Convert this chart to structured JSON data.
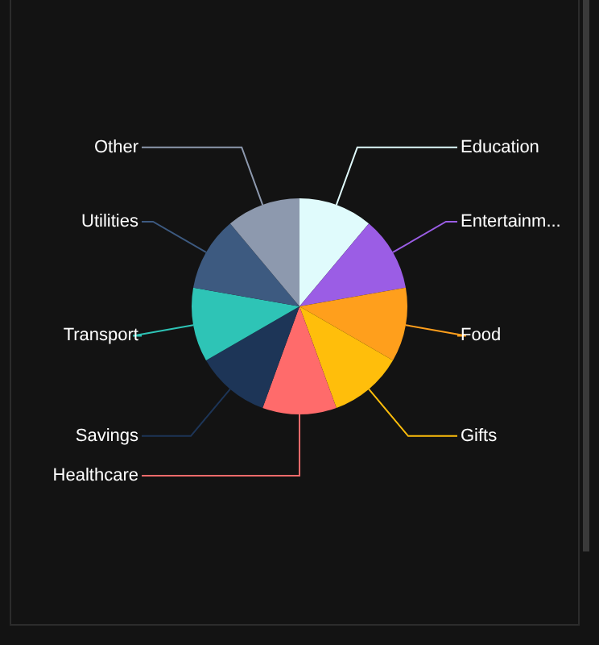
{
  "chart_data": {
    "type": "pie",
    "categories": [
      "Education",
      "Entertainm...",
      "Food",
      "Gifts",
      "Healthcare",
      "Savings",
      "Transport",
      "Utilities",
      "Other"
    ],
    "values": [
      11.11,
      11.11,
      11.11,
      11.11,
      11.12,
      11.11,
      11.11,
      11.11,
      11.11
    ],
    "colors": [
      "#e0fbfc",
      "#9b5de5",
      "#ff9f1c",
      "#ffbe0b",
      "#ff6b6b",
      "#1d3557",
      "#2ec4b6",
      "#3d5a80",
      "#8d99ae"
    ],
    "legend": false
  }
}
